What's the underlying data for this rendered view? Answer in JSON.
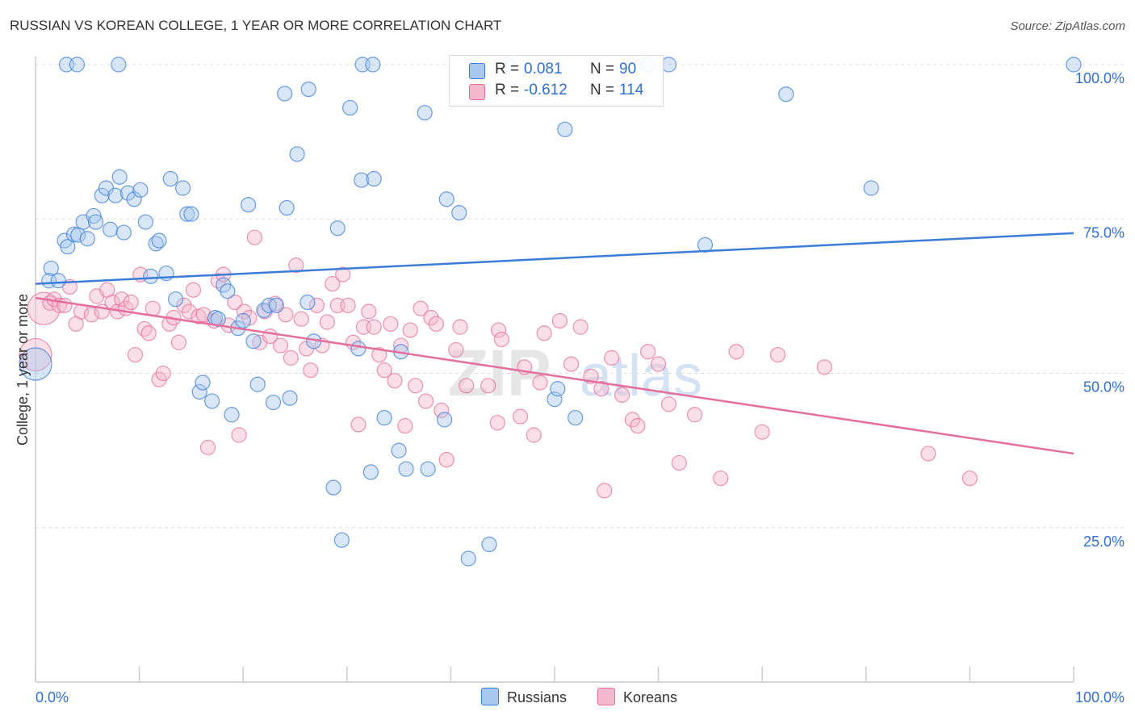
{
  "title": "RUSSIAN VS KOREAN COLLEGE, 1 YEAR OR MORE CORRELATION CHART",
  "source": "Source: ZipAtlas.com",
  "watermark": {
    "zip": "ZIP",
    "atlas": "atlas"
  },
  "stats": [
    {
      "r_label": "R =",
      "r_value": "0.081",
      "n_label": "N =",
      "n_value": "90"
    },
    {
      "r_label": "R =",
      "r_value": "-0.612",
      "n_label": "N =",
      "n_value": "114"
    }
  ],
  "legend": {
    "series1": "Russians",
    "series2": "Koreans"
  },
  "chart_data": {
    "type": "scatter",
    "title": "RUSSIAN VS KOREAN COLLEGE, 1 YEAR OR MORE CORRELATION CHART",
    "xlabel": "",
    "ylabel": "College, 1 year or more",
    "xlim": [
      0,
      100
    ],
    "ylim": [
      0,
      100
    ],
    "x_tick_labels": [
      "0.0%",
      "100.0%"
    ],
    "y_tick_labels": [
      "100.0%",
      "75.0%",
      "50.0%",
      "25.0%"
    ],
    "y_ticks": [
      100,
      75,
      50,
      25
    ],
    "grid": true,
    "legend_position": "bottom",
    "colors": {
      "series1": "#3b7dd8",
      "series2": "#e46f9d",
      "series1_fill": "#a9c8ee",
      "series2_fill": "#f4b8cd"
    },
    "series": [
      {
        "name": "Russians",
        "trend": {
          "x": [
            0,
            100
          ],
          "y": [
            64.5,
            72.7
          ]
        },
        "points": [
          [
            1.5,
            67
          ],
          [
            1.3,
            65
          ],
          [
            2.2,
            65
          ],
          [
            2.8,
            71.5
          ],
          [
            3.1,
            70.5
          ],
          [
            3.7,
            72.5
          ],
          [
            4.1,
            72.4
          ],
          [
            4.6,
            74.5
          ],
          [
            5,
            71.8
          ],
          [
            5.6,
            75.5
          ],
          [
            5.8,
            74.5
          ],
          [
            6.4,
            78.8
          ],
          [
            6.8,
            80
          ],
          [
            7.2,
            73.3
          ],
          [
            7.7,
            78.8
          ],
          [
            8.1,
            81.8
          ],
          [
            8.5,
            72.8
          ],
          [
            8.9,
            79.2
          ],
          [
            9.5,
            78.2
          ],
          [
            10.1,
            79.7
          ],
          [
            10.6,
            74.5
          ],
          [
            11.1,
            65.7
          ],
          [
            11.6,
            71
          ],
          [
            11.9,
            71.5
          ],
          [
            12.6,
            66.2
          ],
          [
            13,
            81.5
          ],
          [
            14.2,
            80
          ],
          [
            14.6,
            75.8
          ],
          [
            15,
            75.8
          ],
          [
            13.5,
            62
          ],
          [
            15.8,
            47
          ],
          [
            16.1,
            48.5
          ],
          [
            17,
            45.5
          ],
          [
            17.3,
            59
          ],
          [
            17.6,
            58.8
          ],
          [
            18.1,
            64.3
          ],
          [
            18.5,
            63.3
          ],
          [
            18.9,
            43.3
          ],
          [
            19.5,
            57.3
          ],
          [
            20,
            58.5
          ],
          [
            20.5,
            77.3
          ],
          [
            21,
            55.2
          ],
          [
            21.4,
            48.2
          ],
          [
            22,
            60.2
          ],
          [
            22.5,
            61
          ],
          [
            22.9,
            45.3
          ],
          [
            23.2,
            61
          ],
          [
            24.2,
            76.8
          ],
          [
            24.5,
            46
          ],
          [
            25.2,
            85.5
          ],
          [
            26.2,
            61.5
          ],
          [
            26.8,
            55.2
          ],
          [
            24,
            95.3
          ],
          [
            26.3,
            96
          ],
          [
            28.7,
            31.5
          ],
          [
            29.1,
            73.5
          ],
          [
            29.5,
            23
          ],
          [
            30.3,
            93
          ],
          [
            31.1,
            54
          ],
          [
            31.4,
            81.3
          ],
          [
            31.5,
            100
          ],
          [
            32.3,
            34
          ],
          [
            32.6,
            81.5
          ],
          [
            32.5,
            100
          ],
          [
            33.6,
            42.8
          ],
          [
            35,
            37.5
          ],
          [
            35.2,
            53.5
          ],
          [
            35.7,
            34.5
          ],
          [
            37.5,
            92.2
          ],
          [
            37.8,
            34.5
          ],
          [
            39.4,
            42.5
          ],
          [
            39.6,
            78.2
          ],
          [
            40.8,
            76
          ],
          [
            41.7,
            20
          ],
          [
            43.7,
            22.3
          ],
          [
            45.5,
            100
          ],
          [
            50,
            45.8
          ],
          [
            50.3,
            47.5
          ],
          [
            51,
            89.5
          ],
          [
            52,
            42.8
          ],
          [
            59,
            100
          ],
          [
            61,
            100
          ],
          [
            64.5,
            70.8
          ],
          [
            72.3,
            95.2
          ],
          [
            80.5,
            80
          ],
          [
            100,
            100
          ],
          [
            0,
            51.5
          ],
          [
            3,
            100
          ],
          [
            4,
            100
          ],
          [
            8,
            100
          ]
        ]
      },
      {
        "name": "Koreans",
        "trend": {
          "x": [
            0,
            100
          ],
          "y": [
            62.2,
            37
          ]
        },
        "points": [
          [
            0,
            53
          ],
          [
            0.8,
            60.5
          ],
          [
            1.4,
            61.4
          ],
          [
            1.8,
            62
          ],
          [
            2.3,
            61
          ],
          [
            2.8,
            61
          ],
          [
            3.3,
            64
          ],
          [
            3.9,
            58
          ],
          [
            4.4,
            60
          ],
          [
            5.4,
            59.5
          ],
          [
            5.9,
            62.5
          ],
          [
            6.4,
            60
          ],
          [
            6.9,
            63.5
          ],
          [
            7.4,
            61.5
          ],
          [
            7.9,
            60
          ],
          [
            8.3,
            62
          ],
          [
            8.7,
            60.5
          ],
          [
            9.2,
            61.5
          ],
          [
            9.6,
            53
          ],
          [
            10.1,
            66
          ],
          [
            10.5,
            57.2
          ],
          [
            10.9,
            56.5
          ],
          [
            11.3,
            60.5
          ],
          [
            11.9,
            49
          ],
          [
            12.3,
            50
          ],
          [
            12.9,
            58
          ],
          [
            13.3,
            59
          ],
          [
            13.8,
            55
          ],
          [
            14.3,
            61
          ],
          [
            14.8,
            60
          ],
          [
            15.2,
            63.5
          ],
          [
            15.7,
            59.2
          ],
          [
            16.2,
            59.5
          ],
          [
            16.6,
            38
          ],
          [
            17.2,
            58.5
          ],
          [
            17.6,
            65
          ],
          [
            18.1,
            66
          ],
          [
            18.6,
            57.8
          ],
          [
            19.2,
            61.5
          ],
          [
            19.6,
            40
          ],
          [
            20.1,
            60
          ],
          [
            20.6,
            59
          ],
          [
            21.1,
            72
          ],
          [
            21.6,
            55
          ],
          [
            22.1,
            60
          ],
          [
            22.6,
            56
          ],
          [
            23.1,
            61.3
          ],
          [
            23.6,
            54.5
          ],
          [
            24.1,
            59.5
          ],
          [
            24.6,
            52.5
          ],
          [
            25.1,
            67.5
          ],
          [
            25.6,
            58.8
          ],
          [
            26.1,
            54
          ],
          [
            26.5,
            50.5
          ],
          [
            27.1,
            61
          ],
          [
            27.6,
            54.5
          ],
          [
            28.1,
            58.3
          ],
          [
            28.6,
            64.5
          ],
          [
            29.1,
            61
          ],
          [
            29.6,
            66
          ],
          [
            30.1,
            61
          ],
          [
            30.6,
            55
          ],
          [
            31.1,
            41.7
          ],
          [
            31.6,
            57.5
          ],
          [
            32.1,
            60
          ],
          [
            32.6,
            57.5
          ],
          [
            33.1,
            53
          ],
          [
            33.6,
            50.5
          ],
          [
            34.2,
            58
          ],
          [
            34.6,
            48.8
          ],
          [
            35.2,
            54.5
          ],
          [
            35.6,
            41.5
          ],
          [
            36.1,
            57
          ],
          [
            36.6,
            48
          ],
          [
            37.1,
            60.5
          ],
          [
            37.6,
            45.5
          ],
          [
            38.1,
            59
          ],
          [
            38.6,
            58
          ],
          [
            39.1,
            44
          ],
          [
            39.6,
            36
          ],
          [
            40.5,
            53.8
          ],
          [
            40.9,
            57.5
          ],
          [
            41.5,
            48
          ],
          [
            43.6,
            48
          ],
          [
            44.6,
            57
          ],
          [
            44.9,
            55.5
          ],
          [
            44.5,
            42
          ],
          [
            46.7,
            43
          ],
          [
            47.1,
            51
          ],
          [
            48,
            40
          ],
          [
            48.6,
            48.5
          ],
          [
            49,
            56.5
          ],
          [
            50.5,
            58.5
          ],
          [
            51.6,
            51.5
          ],
          [
            52.5,
            57.5
          ],
          [
            53.5,
            49.5
          ],
          [
            54.5,
            47.5
          ],
          [
            54.8,
            31
          ],
          [
            55.5,
            52.5
          ],
          [
            56.5,
            46.5
          ],
          [
            57.5,
            42.5
          ],
          [
            58,
            41.5
          ],
          [
            59,
            53.5
          ],
          [
            60,
            51.5
          ],
          [
            61,
            45
          ],
          [
            62,
            35.5
          ],
          [
            63.5,
            43.3
          ],
          [
            66,
            33
          ],
          [
            67.5,
            53.5
          ],
          [
            70,
            40.5
          ],
          [
            76,
            51
          ],
          [
            86,
            37
          ],
          [
            90,
            33
          ],
          [
            71.5,
            53
          ]
        ]
      }
    ]
  }
}
